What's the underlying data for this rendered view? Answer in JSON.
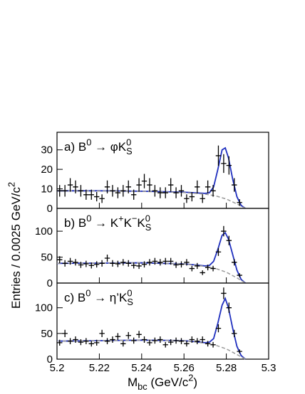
{
  "ylabel": [
    {
      "text": "Entries / 0.0025 GeV/c"
    },
    {
      "text": "2",
      "pos": "sup"
    }
  ],
  "xlabel": [
    {
      "text": "M"
    },
    {
      "text": "bc",
      "pos": "sub"
    },
    {
      "text": " (GeV/c"
    },
    {
      "text": "2",
      "pos": "sup"
    },
    {
      "text": ")"
    }
  ],
  "chart_data": [
    {
      "type": "scatter",
      "annotation": [
        {
          "text": "a) B"
        },
        {
          "text": "0",
          "pos": "sup"
        },
        {
          "text": " → φK"
        },
        {
          "text": "0",
          "pos": "sup"
        },
        {
          "text": "S",
          "pos": "sub"
        }
      ],
      "xlim": [
        5.2,
        5.3
      ],
      "ylim": [
        0,
        39
      ],
      "yticks": [
        0,
        10,
        20,
        30
      ],
      "x": [
        5.20125,
        5.20375,
        5.20625,
        5.20875,
        5.21125,
        5.21375,
        5.21625,
        5.21875,
        5.22125,
        5.22375,
        5.22625,
        5.22875,
        5.23125,
        5.23375,
        5.23625,
        5.23875,
        5.24125,
        5.24375,
        5.24625,
        5.24875,
        5.25125,
        5.25375,
        5.25625,
        5.25875,
        5.26125,
        5.26375,
        5.26625,
        5.26875,
        5.27125,
        5.27375,
        5.27625,
        5.27875,
        5.28125,
        5.28375,
        5.28625
      ],
      "values": [
        9,
        9,
        12,
        11,
        9,
        7,
        7,
        6,
        5,
        11,
        9,
        8,
        9,
        11,
        7,
        12,
        14,
        12,
        9,
        8,
        8,
        12,
        8,
        9,
        5,
        6,
        11,
        5,
        11,
        9,
        27,
        23,
        22,
        12,
        3
      ],
      "yerr": [
        3,
        3,
        3.5,
        3.3,
        3,
        2.6,
        2.6,
        2.4,
        2.2,
        3.3,
        3,
        2.8,
        3,
        3.3,
        2.6,
        3.5,
        3.7,
        3.5,
        3,
        2.8,
        2.8,
        3.5,
        2.8,
        3,
        2.2,
        2.4,
        3.3,
        2.2,
        3.3,
        3,
        5.2,
        4.8,
        4.7,
        3.5,
        1.7
      ],
      "color": "#000000",
      "series": [
        {
          "x": [
            5.2,
            5.22,
            5.24,
            5.26,
            5.27,
            5.272,
            5.274,
            5.276,
            5.278,
            5.2795,
            5.281,
            5.283,
            5.285,
            5.287,
            5.289
          ],
          "values": [
            9,
            9,
            8.8,
            8.3,
            7.7,
            8,
            11,
            20,
            30,
            31,
            26,
            15,
            6,
            1.5,
            0
          ],
          "color": "#1f2fbf",
          "dash": false
        },
        {
          "x": [
            5.2,
            5.22,
            5.24,
            5.26,
            5.27,
            5.275,
            5.28,
            5.285,
            5.289
          ],
          "values": [
            9,
            8.9,
            8.7,
            8.1,
            7.3,
            6.4,
            4.8,
            2.3,
            0
          ],
          "color": "#999999",
          "dash": true
        }
      ]
    },
    {
      "type": "scatter",
      "annotation": [
        {
          "text": "b) B"
        },
        {
          "text": "0",
          "pos": "sup"
        },
        {
          "text": " → K"
        },
        {
          "text": "+",
          "pos": "sup"
        },
        {
          "text": "K"
        },
        {
          "text": "−",
          "pos": "sup"
        },
        {
          "text": "K"
        },
        {
          "text": "0",
          "pos": "sup"
        },
        {
          "text": "S",
          "pos": "sub"
        }
      ],
      "xlim": [
        5.2,
        5.3
      ],
      "ylim": [
        0,
        144
      ],
      "yticks": [
        0,
        50,
        100
      ],
      "x": [
        5.20125,
        5.20375,
        5.20625,
        5.20875,
        5.21125,
        5.21375,
        5.21625,
        5.21875,
        5.22125,
        5.22375,
        5.22625,
        5.22875,
        5.23125,
        5.23375,
        5.23625,
        5.23875,
        5.24125,
        5.24375,
        5.24625,
        5.24875,
        5.25125,
        5.25375,
        5.25625,
        5.25875,
        5.26125,
        5.26375,
        5.26625,
        5.26875,
        5.27125,
        5.27375,
        5.27625,
        5.27875,
        5.28125,
        5.28375,
        5.28625
      ],
      "values": [
        45,
        38,
        42,
        40,
        35,
        37,
        34,
        36,
        38,
        48,
        38,
        37,
        40,
        38,
        34,
        33,
        36,
        40,
        42,
        40,
        42,
        42,
        35,
        36,
        40,
        28,
        33,
        20,
        30,
        28,
        60,
        100,
        82,
        40,
        15
      ],
      "yerr": [
        6.7,
        6.2,
        6.5,
        6.3,
        5.9,
        6.1,
        5.8,
        6,
        6.2,
        6.9,
        6.2,
        6.1,
        6.3,
        6.2,
        5.8,
        5.7,
        6,
        6.3,
        6.5,
        6.3,
        6.5,
        6.5,
        5.9,
        6,
        6.3,
        5.3,
        5.7,
        4.5,
        5.5,
        5.3,
        7.7,
        10,
        9,
        6.3,
        3.9
      ],
      "color": "#000000",
      "series": [
        {
          "x": [
            5.2,
            5.22,
            5.24,
            5.26,
            5.27,
            5.272,
            5.274,
            5.276,
            5.278,
            5.2795,
            5.281,
            5.283,
            5.285,
            5.287,
            5.289
          ],
          "values": [
            38,
            38.5,
            39,
            37,
            33,
            34,
            42,
            65,
            92,
            97,
            85,
            55,
            25,
            7,
            0
          ],
          "color": "#1f2fbf",
          "dash": false
        },
        {
          "x": [
            5.2,
            5.22,
            5.24,
            5.26,
            5.27,
            5.275,
            5.28,
            5.285,
            5.289
          ],
          "values": [
            38,
            38.5,
            39,
            37,
            32,
            28,
            21,
            10,
            0
          ],
          "color": "#999999",
          "dash": true
        }
      ]
    },
    {
      "type": "scatter",
      "annotation": [
        {
          "text": "c) B"
        },
        {
          "text": "0",
          "pos": "sup"
        },
        {
          "text": " → η’K"
        },
        {
          "text": "0",
          "pos": "sup"
        },
        {
          "text": "S",
          "pos": "sub"
        }
      ],
      "xlim": [
        5.2,
        5.3
      ],
      "ylim": [
        0,
        148
      ],
      "yticks": [
        0,
        50,
        100
      ],
      "xticks": [
        5.2,
        5.22,
        5.24,
        5.26,
        5.28,
        5.3
      ],
      "x": [
        5.20125,
        5.20375,
        5.20625,
        5.20875,
        5.21125,
        5.21375,
        5.21625,
        5.21875,
        5.22125,
        5.22375,
        5.22625,
        5.22875,
        5.23125,
        5.23375,
        5.23625,
        5.23875,
        5.24125,
        5.24375,
        5.24625,
        5.24875,
        5.25125,
        5.25375,
        5.25625,
        5.25875,
        5.26125,
        5.26375,
        5.26625,
        5.26875,
        5.27125,
        5.27375,
        5.27625,
        5.27875,
        5.28125,
        5.28375,
        5.28625
      ],
      "values": [
        32,
        50,
        35,
        38,
        33,
        35,
        30,
        32,
        50,
        35,
        38,
        44,
        30,
        46,
        36,
        48,
        38,
        32,
        36,
        38,
        28,
        33,
        36,
        35,
        30,
        38,
        35,
        38,
        30,
        28,
        60,
        128,
        100,
        50,
        15
      ],
      "yerr": [
        5.7,
        7.1,
        5.9,
        6.2,
        5.7,
        5.9,
        5.5,
        5.7,
        7.1,
        5.9,
        6.2,
        6.6,
        5.5,
        6.8,
        6,
        6.9,
        6.2,
        5.7,
        6,
        6.2,
        5.3,
        5.7,
        6,
        5.9,
        5.5,
        6.2,
        5.9,
        6.2,
        5.5,
        5.3,
        7.7,
        11.3,
        10,
        7.1,
        3.9
      ],
      "color": "#000000",
      "series": [
        {
          "x": [
            5.2,
            5.22,
            5.24,
            5.26,
            5.27,
            5.272,
            5.274,
            5.276,
            5.278,
            5.2795,
            5.281,
            5.283,
            5.285,
            5.287,
            5.289
          ],
          "values": [
            35,
            36,
            37,
            36,
            32,
            33,
            40,
            70,
            105,
            118,
            100,
            60,
            25,
            7,
            0
          ],
          "color": "#1f2fbf",
          "dash": false
        },
        {
          "x": [
            5.2,
            5.22,
            5.24,
            5.26,
            5.27,
            5.275,
            5.28,
            5.285,
            5.289
          ],
          "values": [
            35,
            36,
            37,
            36,
            31,
            27,
            20,
            9,
            0
          ],
          "color": "#999999",
          "dash": true
        }
      ]
    }
  ]
}
